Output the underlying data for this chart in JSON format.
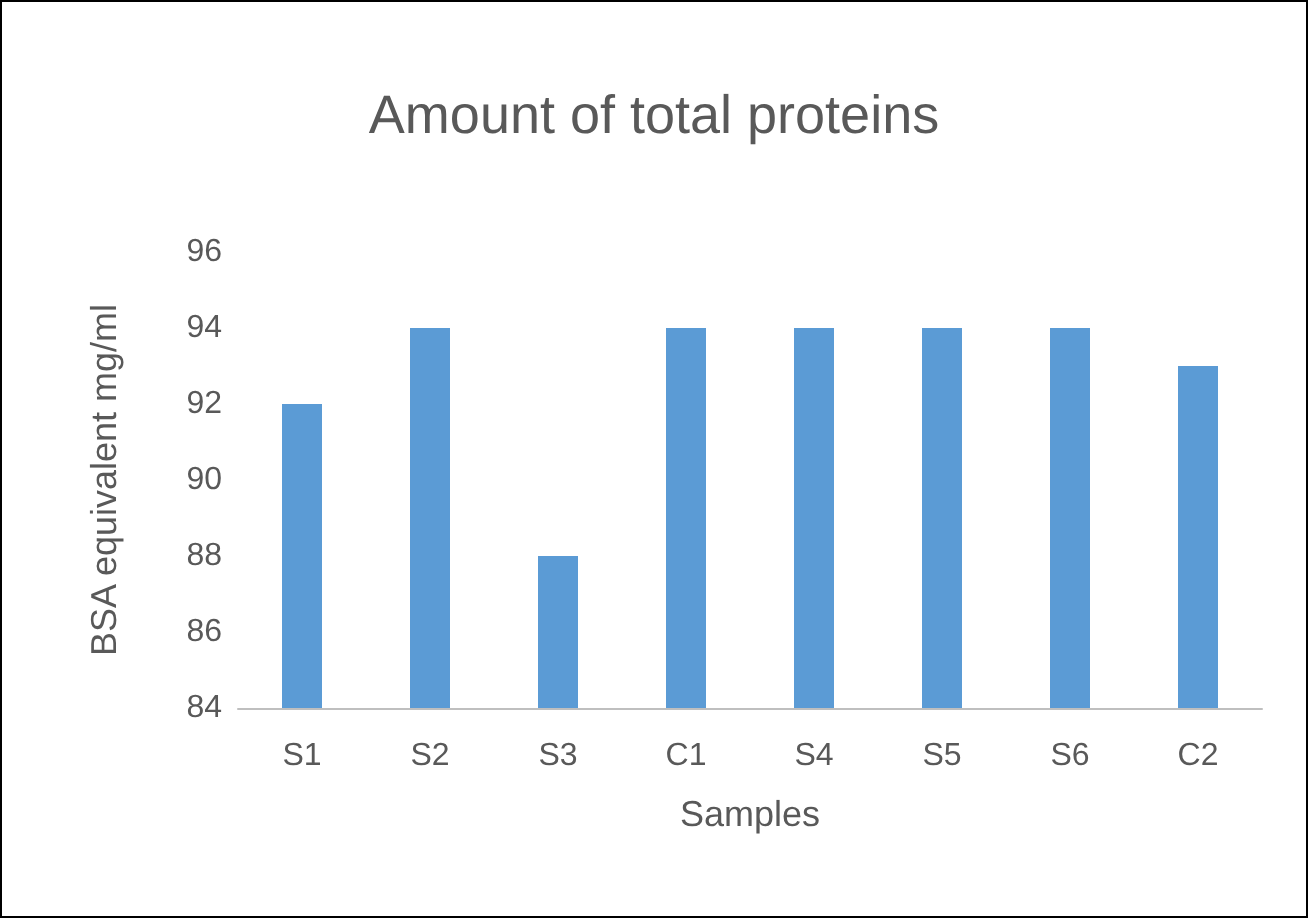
{
  "chart_data": {
    "type": "bar",
    "title": "Amount of total proteins",
    "xlabel": "Samples",
    "ylabel": "BSA equivalent mg/ml",
    "categories": [
      "S1",
      "S2",
      "S3",
      "C1",
      "S4",
      "S5",
      "S6",
      "C2"
    ],
    "values": [
      92,
      94,
      88,
      94,
      94,
      94,
      94,
      93
    ],
    "color": "#5b9bd5",
    "ylim": [
      84,
      96
    ],
    "yticks": [
      84,
      86,
      88,
      90,
      92,
      94,
      96
    ],
    "grid": false
  }
}
